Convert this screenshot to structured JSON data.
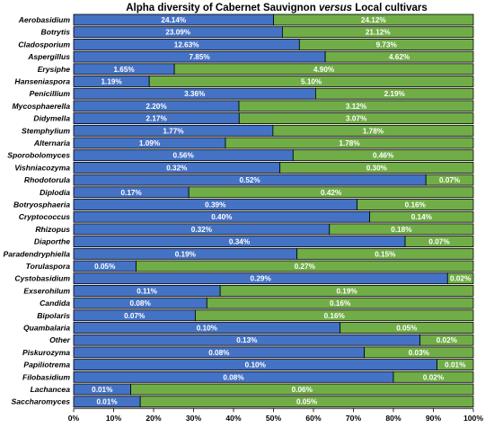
{
  "chart_data": {
    "type": "bar",
    "orientation": "horizontal",
    "stacked": "100%",
    "title_parts": [
      {
        "text": "Alpha diversity of Cabernet Sauvignon ",
        "italic": false
      },
      {
        "text": "versus",
        "italic": true
      },
      {
        "text": " Local cultivars",
        "italic": false
      }
    ],
    "xlim": [
      0,
      100
    ],
    "x_ticks": [
      "0%",
      "10%",
      "20%",
      "30%",
      "40%",
      "50%",
      "60%",
      "70%",
      "80%",
      "90%",
      "100%"
    ],
    "series_colors": [
      "#4472c4",
      "#70ad47"
    ],
    "categories": [
      "Aerobasidium",
      "Botrytis",
      "Cladosporium",
      "Aspergillus",
      "Erysiphe",
      "Hanseniaspora",
      "Penicillium",
      "Mycosphaerella",
      "Didymella",
      "Stemphylium",
      "Alternaria",
      "Sporobolomyces",
      "Vishniacozyma",
      "Rhodotorula",
      "Diplodia",
      "Botryosphaeria",
      "Cryptococcus",
      "Rhizopus",
      "Diaporthe",
      "Paradendryphiella",
      "Torulaspora",
      "Cystobasidium",
      "Exserohilum",
      "Candida",
      "Bipolaris",
      "Quambalaria",
      "Other",
      "Piskurozyma",
      "Papiliotrema",
      "Filobasidium",
      "Lachancea",
      "Saccharomyces"
    ],
    "series": [
      {
        "values": [
          24.14,
          23.09,
          12.63,
          7.85,
          1.65,
          1.19,
          3.36,
          2.2,
          2.17,
          1.77,
          1.09,
          0.56,
          0.32,
          0.52,
          0.17,
          0.39,
          0.4,
          0.32,
          0.34,
          0.19,
          0.05,
          0.29,
          0.11,
          0.08,
          0.07,
          0.1,
          0.13,
          0.08,
          0.1,
          0.08,
          0.01,
          0.01
        ],
        "labels": [
          "24.14%",
          "23.09%",
          "12.63%",
          "7.85%",
          "1.65%",
          "1.19%",
          "3.36%",
          "2.20%",
          "2.17%",
          "1.77%",
          "1.09%",
          "0.56%",
          "0.32%",
          "0.52%",
          "0.17%",
          "0.39%",
          "0.40%",
          "0.32%",
          "0.34%",
          "0.19%",
          "0.05%",
          "0.29%",
          "0.11%",
          "0.08%",
          "0.07%",
          "0.10%",
          "0.13%",
          "0.08%",
          "0.10%",
          "0.08%",
          "0.01%",
          "0.01%"
        ]
      },
      {
        "values": [
          24.12,
          21.12,
          9.73,
          4.62,
          4.9,
          5.1,
          2.19,
          3.12,
          3.07,
          1.78,
          1.78,
          0.46,
          0.3,
          0.07,
          0.42,
          0.16,
          0.14,
          0.18,
          0.07,
          0.15,
          0.27,
          0.02,
          0.19,
          0.16,
          0.16,
          0.05,
          0.02,
          0.03,
          0.01,
          0.02,
          0.06,
          0.05
        ],
        "labels": [
          "24.12%",
          "21.12%",
          "9.73%",
          "4.62%",
          "4.90%",
          "5.10%",
          "2.19%",
          "3.12%",
          "3.07%",
          "1.78%",
          "1.78%",
          "0.46%",
          "0.30%",
          "0.07%",
          "0.42%",
          "0.16%",
          "0.14%",
          "0.18%",
          "0.07%",
          "0.15%",
          "0.27%",
          "0.02%",
          "0.19%",
          "0.16%",
          "0.16%",
          "0.05%",
          "0.02%",
          "0.03%",
          "0.01%",
          "0.02%",
          "0.06%",
          "0.05%"
        ]
      }
    ]
  }
}
